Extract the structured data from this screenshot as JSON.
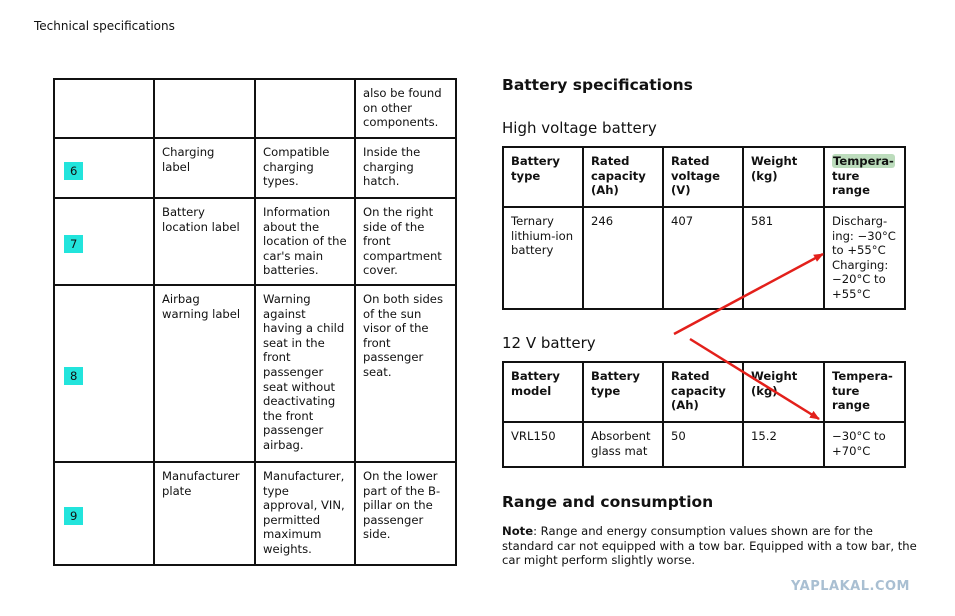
{
  "header": {
    "title": "Technical specifications"
  },
  "labels_table": {
    "rows": [
      {
        "num": "",
        "name": "",
        "description": "",
        "location": "also be found\non other\ncomponents."
      },
      {
        "num": "6",
        "name": "Charging\nlabel",
        "description": "Compatible\ncharging\ntypes.",
        "location": "Inside the\ncharging\nhatch."
      },
      {
        "num": "7",
        "name": "Battery\nlocation label",
        "description": "Information\nabout the\nlocation of the\ncar's main\nbatteries.",
        "location": "On the right\nside of the\nfront\ncompartment\ncover."
      },
      {
        "num": "8",
        "name": "Airbag\nwarning label",
        "description": "Warning\nagainst\nhaving a child\nseat in the\nfront\npassenger\nseat without\ndeactivating\nthe front\npassenger\nairbag.",
        "location": "On both sides\nof the sun\nvisor of the\nfront\npassenger\nseat."
      },
      {
        "num": "9",
        "name": "Manufacturer\nplate",
        "description": "Manufacturer,\ntype\napproval, VIN,\npermitted\nmaximum\nweights.",
        "location": "On the lower\npart of the B-\npillar on the\npassenger\nside."
      }
    ],
    "badge_color": "#22e4dc"
  },
  "battery_specs": {
    "title": "Battery specifications",
    "high_voltage": {
      "title": "High voltage battery",
      "headers": [
        "Battery\ntype",
        "Rated\ncapacity\n(Ah)",
        "Rated\nvoltage\n(V)",
        "Weight\n(kg)"
      ],
      "temp_header_highlight": "Tempera-",
      "temp_header_rest": "ture\nrange",
      "row": [
        "Ternary\nlithium-ion\nbattery",
        "246",
        "407",
        "581",
        "Discharg-\ning: −30°C\nto +55°C\nCharging:\n−20°C to\n+55°C"
      ]
    },
    "low_voltage": {
      "title": "12 V battery",
      "headers": [
        "Battery\nmodel",
        "Battery\ntype",
        "Rated\ncapacity\n(Ah)",
        "Weight\n(kg)",
        "Tempera-\nture\nrange"
      ],
      "row": [
        "VRL150",
        "Absorbent\nglass mat",
        "50",
        "15.2",
        "−30°C to\n+70°C"
      ]
    },
    "annotation_color": "#e3201b",
    "highlight_color": "#bcdcbc"
  },
  "range": {
    "title": "Range and consumption",
    "note_label": "Note",
    "note_text": ": Range and energy consumption values shown are for the standard car not equipped with a tow bar. Equipped with a tow bar, the car might perform slightly worse."
  },
  "watermark": "YAPLAKAL.COM"
}
